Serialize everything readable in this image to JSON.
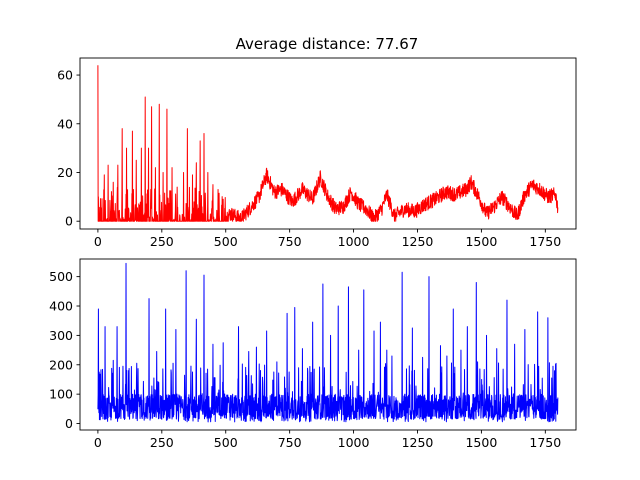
{
  "chart_data": [
    {
      "type": "line",
      "title": "Average distance: 77.67",
      "xlim": [
        -70,
        1870
      ],
      "ylim": [
        -3.2,
        67
      ],
      "xticks": [
        0,
        250,
        500,
        750,
        1000,
        1250,
        1500,
        1750
      ],
      "yticks": [
        0,
        20,
        40,
        60
      ],
      "grid": false,
      "series": [
        {
          "color": "#ff0000",
          "n_points": 1800,
          "peaks": [
            [
              0,
              64
            ],
            [
              2,
              10
            ],
            [
              25,
              19
            ],
            [
              40,
              23
            ],
            [
              60,
              16
            ],
            [
              78,
              23
            ],
            [
              95,
              38
            ],
            [
              112,
              30
            ],
            [
              135,
              37
            ],
            [
              150,
              25
            ],
            [
              170,
              30
            ],
            [
              185,
              51
            ],
            [
              198,
              30
            ],
            [
              210,
              47
            ],
            [
              225,
              22
            ],
            [
              240,
              48
            ],
            [
              255,
              20
            ],
            [
              270,
              46
            ],
            [
              290,
              22
            ],
            [
              310,
              14
            ],
            [
              335,
              20
            ],
            [
              350,
              38
            ],
            [
              370,
              19
            ],
            [
              385,
              24
            ],
            [
              400,
              33
            ],
            [
              415,
              36
            ],
            [
              430,
              20
            ],
            [
              450,
              15
            ],
            [
              470,
              13
            ],
            [
              490,
              9
            ]
          ],
          "envelope_after_500": [
            [
              500,
              2
            ],
            [
              520,
              3
            ],
            [
              560,
              1
            ],
            [
              600,
              6
            ],
            [
              630,
              10
            ],
            [
              660,
              19
            ],
            [
              690,
              12
            ],
            [
              720,
              13
            ],
            [
              760,
              8
            ],
            [
              800,
              13
            ],
            [
              840,
              9
            ],
            [
              870,
              18
            ],
            [
              900,
              10
            ],
            [
              930,
              5
            ],
            [
              960,
              6
            ],
            [
              990,
              12
            ],
            [
              1020,
              7
            ],
            [
              1050,
              5
            ],
            [
              1080,
              1
            ],
            [
              1110,
              5
            ],
            [
              1130,
              11
            ],
            [
              1160,
              2
            ],
            [
              1200,
              5
            ],
            [
              1240,
              4
            ],
            [
              1280,
              7
            ],
            [
              1320,
              9
            ],
            [
              1360,
              12
            ],
            [
              1400,
              11
            ],
            [
              1440,
              13
            ],
            [
              1460,
              16
            ],
            [
              1490,
              10
            ],
            [
              1520,
              3
            ],
            [
              1550,
              6
            ],
            [
              1580,
              10
            ],
            [
              1610,
              6
            ],
            [
              1640,
              2
            ],
            [
              1670,
              11
            ],
            [
              1700,
              15
            ],
            [
              1730,
              13
            ],
            [
              1760,
              10
            ],
            [
              1790,
              11
            ],
            [
              1800,
              5
            ]
          ]
        }
      ]
    },
    {
      "type": "line",
      "title": "",
      "xlim": [
        -70,
        1870
      ],
      "ylim": [
        -22,
        560
      ],
      "xticks": [
        0,
        250,
        500,
        750,
        1000,
        1250,
        1500,
        1750
      ],
      "yticks": [
        0,
        100,
        200,
        300,
        400,
        500
      ],
      "grid": false,
      "series": [
        {
          "color": "#0000ff",
          "n_points": 1800,
          "baseline_mean": 70,
          "spikes": [
            [
              2,
              390
            ],
            [
              28,
              330
            ],
            [
              60,
              215
            ],
            [
              75,
              330
            ],
            [
              110,
              545
            ],
            [
              200,
              425
            ],
            [
              230,
              245
            ],
            [
              265,
              390
            ],
            [
              305,
              320
            ],
            [
              345,
              520
            ],
            [
              385,
              355
            ],
            [
              415,
              505
            ],
            [
              450,
              270
            ],
            [
              490,
              275
            ],
            [
              550,
              330
            ],
            [
              590,
              245
            ],
            [
              620,
              260
            ],
            [
              660,
              315
            ],
            [
              700,
              210
            ],
            [
              740,
              375
            ],
            [
              770,
              395
            ],
            [
              800,
              255
            ],
            [
              840,
              345
            ],
            [
              880,
              475
            ],
            [
              910,
              300
            ],
            [
              940,
              400
            ],
            [
              980,
              465
            ],
            [
              1020,
              250
            ],
            [
              1040,
              455
            ],
            [
              1080,
              315
            ],
            [
              1105,
              345
            ],
            [
              1130,
              250
            ],
            [
              1150,
              230
            ],
            [
              1190,
              515
            ],
            [
              1230,
              325
            ],
            [
              1270,
              225
            ],
            [
              1295,
              500
            ],
            [
              1340,
              265
            ],
            [
              1365,
              230
            ],
            [
              1390,
              390
            ],
            [
              1420,
              250
            ],
            [
              1445,
              330
            ],
            [
              1480,
              480
            ],
            [
              1520,
              300
            ],
            [
              1560,
              255
            ],
            [
              1600,
              420
            ],
            [
              1630,
              270
            ],
            [
              1670,
              320
            ],
            [
              1720,
              380
            ],
            [
              1760,
              360
            ],
            [
              1780,
              195
            ]
          ]
        }
      ]
    }
  ]
}
